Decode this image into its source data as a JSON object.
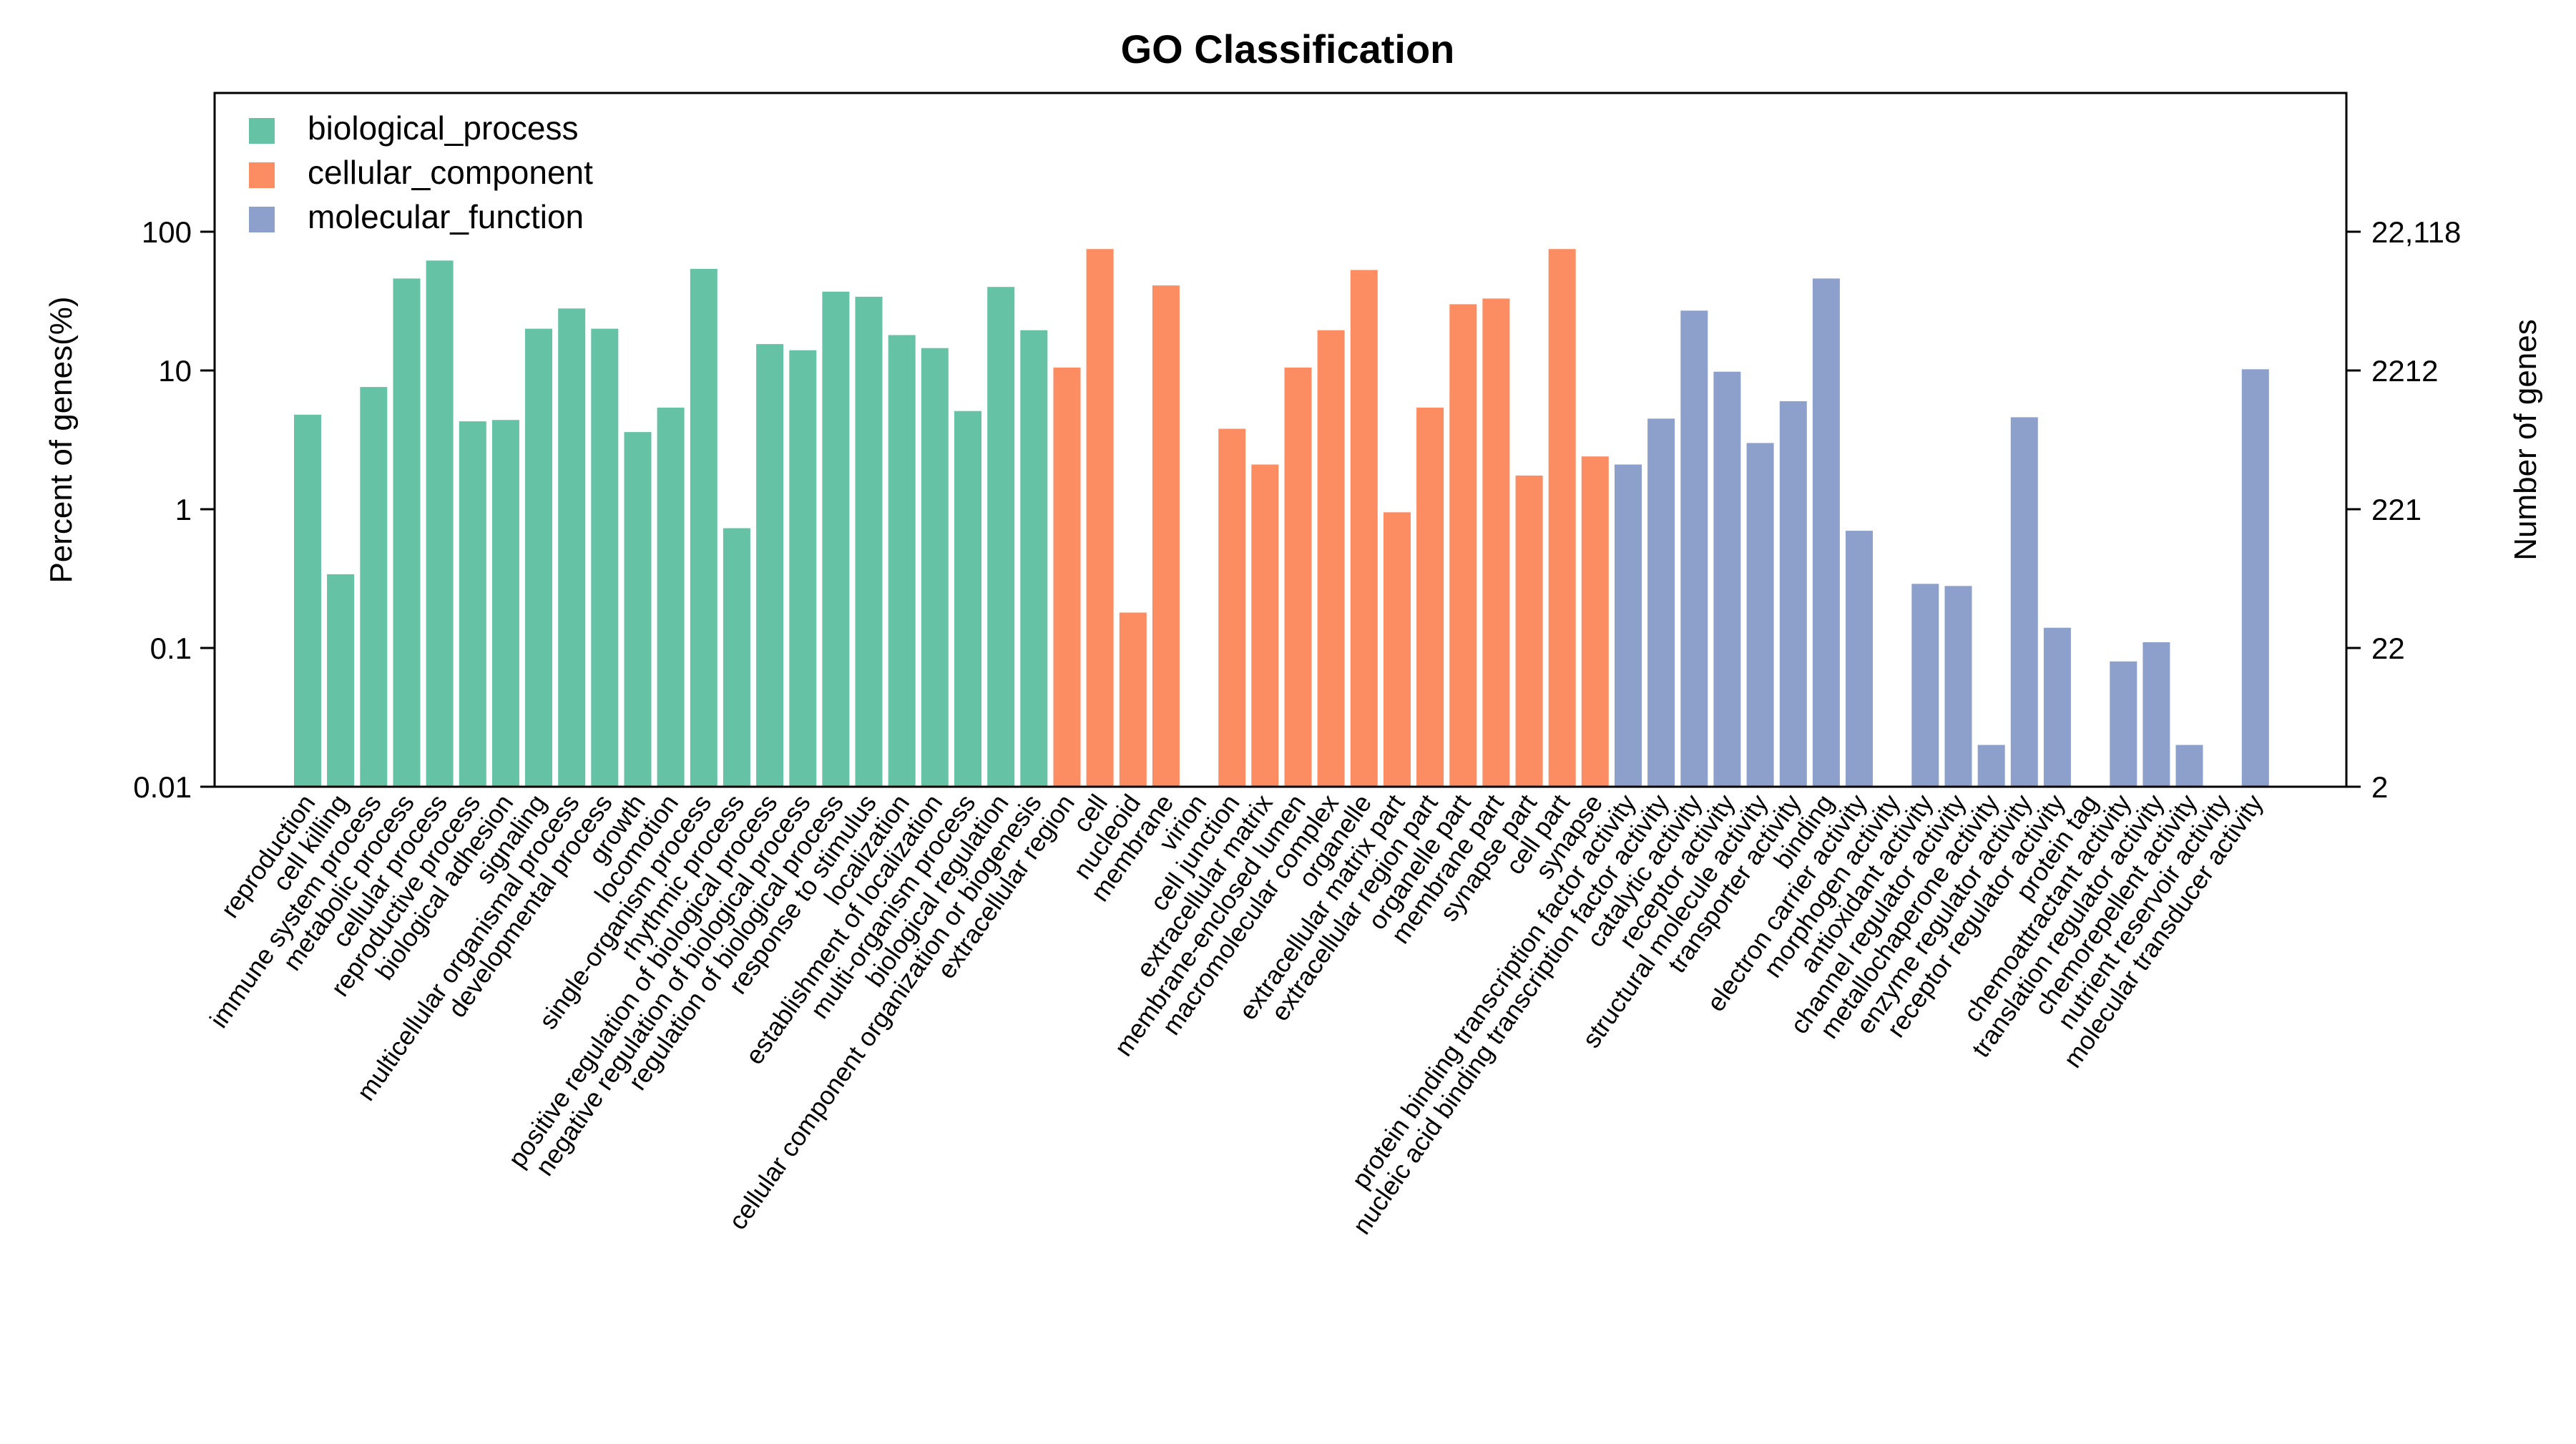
{
  "chart_data": {
    "type": "bar",
    "title": "GO Classification",
    "ylabel": "Percent of genes(%)",
    "ylabel_right": "Number of genes",
    "yscale": "log",
    "ylim": [
      0.01,
      1000
    ],
    "y_ticks": [
      0.01,
      0.1,
      1,
      10,
      100
    ],
    "y_tick_labels": [
      "0.01",
      "0.1",
      "1",
      "10",
      "100"
    ],
    "y2_tick_labels": [
      "2",
      "22",
      "221",
      "2212",
      "22,118"
    ],
    "legend_position": "top-left",
    "colors": {
      "biological_process": "#66c2a5",
      "cellular_component": "#fc8d62",
      "molecular_function": "#8da0cb"
    },
    "series": [
      {
        "name": "biological_process",
        "categories": [
          "reproduction",
          "cell killing",
          "immune system process",
          "metabolic process",
          "cellular process",
          "reproductive process",
          "biological adhesion",
          "signaling",
          "multicellular organismal process",
          "developmental process",
          "growth",
          "locomotion",
          "single-organism process",
          "rhythmic process",
          "positive regulation of biological process",
          "negative regulation of biological process",
          "regulation of biological process",
          "response to stimulus",
          "localization",
          "establishment of localization",
          "multi-organism process",
          "biological regulation",
          "cellular component organization or biogenesis"
        ],
        "values": [
          4.8,
          0.34,
          7.6,
          46,
          62,
          4.3,
          4.4,
          20,
          28,
          20,
          3.6,
          5.4,
          54,
          0.73,
          15.5,
          14,
          37,
          34,
          18,
          14.5,
          5.1,
          40,
          19.5
        ]
      },
      {
        "name": "cellular_component",
        "categories": [
          "extracellular region",
          "cell",
          "nucleoid",
          "membrane",
          "virion",
          "cell junction",
          "extracellular matrix",
          "membrane-enclosed lumen",
          "macromolecular complex",
          "organelle",
          "extracellular matrix part",
          "extracellular region part",
          "organelle part",
          "membrane part",
          "synapse part",
          "cell part",
          "synapse"
        ],
        "values": [
          10.5,
          75,
          0.18,
          41,
          null,
          3.8,
          2.1,
          10.5,
          19.5,
          53,
          0.95,
          5.4,
          30,
          33,
          1.75,
          75,
          2.4
        ]
      },
      {
        "name": "molecular_function",
        "categories": [
          "protein binding transcription factor activity",
          "nucleic acid binding transcription factor activity",
          "catalytic activity",
          "receptor activity",
          "structural molecule activity",
          "transporter activity",
          "binding",
          "electron carrier activity",
          "morphogen activity",
          "antioxidant activity",
          "channel regulator activity",
          "metallochaperone activity",
          "enzyme regulator activity",
          "receptor regulator activity",
          "protein tag",
          "chemoattractant activity",
          "translation regulator activity",
          "chemorepellent activity",
          "nutrient reservoir activity",
          "molecular transducer activity"
        ],
        "values": [
          2.1,
          4.5,
          27,
          9.8,
          3.0,
          6.0,
          46,
          0.7,
          null,
          0.29,
          0.28,
          0.02,
          4.6,
          0.14,
          null,
          0.08,
          0.11,
          0.02,
          null,
          10.2
        ]
      }
    ]
  }
}
